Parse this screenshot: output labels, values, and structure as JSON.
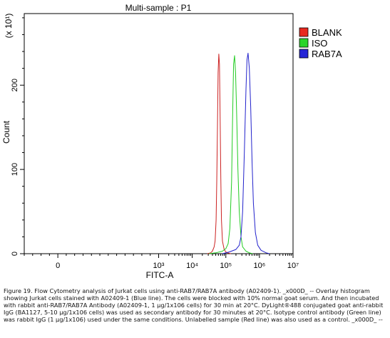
{
  "chart_data": {
    "type": "line",
    "title": "Multi-sample : P1",
    "xlabel": "FITC-A",
    "ylabel": "Count",
    "y_multiplier": "(x 10¹)",
    "xlim": [
      -1,
      7
    ],
    "ylim": [
      0,
      285
    ],
    "x_ticks": [
      {
        "x": 0,
        "label": "0"
      },
      {
        "x": 3,
        "label": "10³"
      },
      {
        "x": 4,
        "label": "10⁴"
      },
      {
        "x": 5,
        "label": "10⁵"
      },
      {
        "x": 6,
        "label": "10⁶"
      },
      {
        "x": 7,
        "label": "10⁷"
      }
    ],
    "y_ticks": [
      {
        "y": 0,
        "label": "0"
      },
      {
        "y": 100,
        "label": "100"
      },
      {
        "y": 200,
        "label": "200"
      }
    ],
    "legend_position": "top-right",
    "series": [
      {
        "name": "BLANK",
        "color": "#cc2222",
        "legend_color": "#e8281e",
        "x": [
          4.45,
          4.55,
          4.6,
          4.65,
          4.68,
          4.71,
          4.73,
          4.75,
          4.77,
          4.79,
          4.81,
          4.83,
          4.85,
          4.87,
          4.9,
          4.95,
          5.0,
          5.05,
          5.15
        ],
        "y": [
          0,
          1,
          3,
          8,
          15,
          40,
          85,
          150,
          215,
          237,
          225,
          165,
          90,
          40,
          15,
          5,
          2,
          1,
          0
        ]
      },
      {
        "name": "ISO",
        "color": "#22cc22",
        "legend_color": "#2ad42a",
        "x": [
          4.5,
          4.7,
          4.9,
          5.0,
          5.07,
          5.12,
          5.17,
          5.2,
          5.23,
          5.26,
          5.29,
          5.32,
          5.36,
          5.4,
          5.45,
          5.5,
          5.6,
          5.7,
          5.8
        ],
        "y": [
          0,
          1,
          3,
          6,
          12,
          30,
          85,
          160,
          225,
          235,
          215,
          170,
          100,
          50,
          20,
          8,
          3,
          1,
          0
        ]
      },
      {
        "name": "RAB7A",
        "color": "#2222cc",
        "legend_color": "#2626d6",
        "x": [
          4.9,
          5.1,
          5.3,
          5.4,
          5.45,
          5.5,
          5.55,
          5.6,
          5.63,
          5.66,
          5.7,
          5.74,
          5.78,
          5.82,
          5.88,
          5.95,
          6.05,
          6.2,
          6.3
        ],
        "y": [
          0,
          2,
          5,
          10,
          20,
          50,
          120,
          195,
          230,
          238,
          220,
          175,
          110,
          60,
          25,
          10,
          4,
          1,
          0
        ]
      }
    ]
  },
  "caption": "Figure 19. Flow Cytometry analysis of Jurkat cells using anti-RAB7/RAB7A antibody (A02409-1). _x000D_ -- Overlay histogram showing Jurkat cells stained with A02409-1 (Blue line). The cells were blocked with 10% normal goat serum. And then incubated with rabbit anti-RAB7/RAB7A Antibody (A02409-1, 1 μg/1x106 cells) for 30 min at 20°C. DyLight®488 conjugated goat anti-rabbit IgG (BA1127, 5-10 μg/1x106 cells) was used as secondary antibody for 30 minutes at 20°C. Isotype control antibody (Green line) was rabbit IgG (1 μg/1x106) used under the same conditions. Unlabelled sample (Red line) was also used as a control. _x000D_ --"
}
